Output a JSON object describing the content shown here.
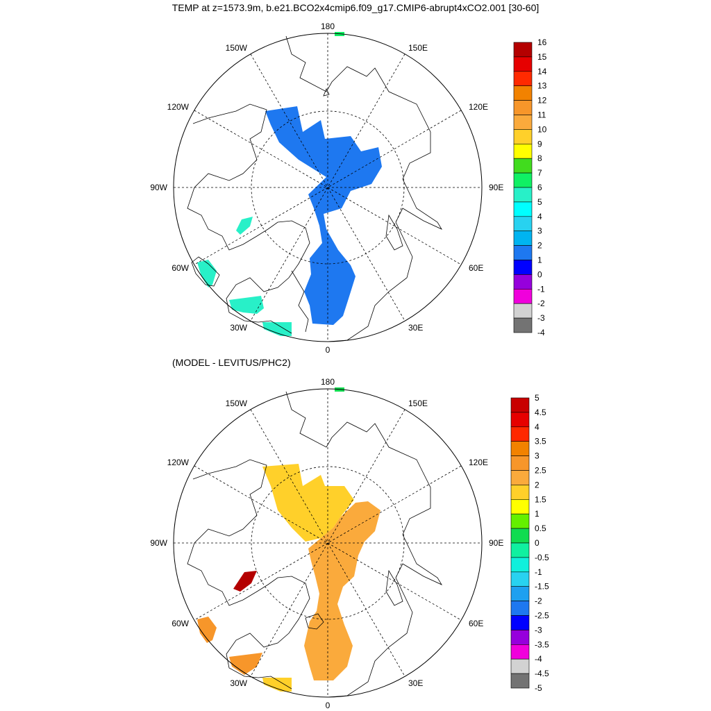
{
  "title": "TEMP at z=1573.9m, b.e21.BCO2x4cmip6.f09_g17.CMIP6-abrupt4xCO2.001 [30-60]",
  "subtitle": "(MODEL - LEVITUS/PHC2)",
  "longitude_labels": {
    "top": "180",
    "bottom": "0",
    "left": "90W",
    "right": "90E",
    "upper_left_1": "150W",
    "upper_left_2": "120W",
    "upper_right_1": "150E",
    "upper_right_2": "120E",
    "lower_left_1": "60W",
    "lower_left_2": "30W",
    "lower_right_1": "60E",
    "lower_right_2": "30E"
  },
  "colorbar_top": {
    "labels": [
      "16",
      "15",
      "14",
      "13",
      "12",
      "11",
      "10",
      "9",
      "8",
      "7",
      "6",
      "5",
      "4",
      "3",
      "2",
      "1",
      "0",
      "-1",
      "-2",
      "-3",
      "-4"
    ],
    "colors": [
      "#b40000",
      "#e60000",
      "#ff2a00",
      "#f28200",
      "#f7962a",
      "#faaa3c",
      "#ffd02a",
      "#ffff00",
      "#41dc1e",
      "#10f064",
      "#28f0c8",
      "#00ffff",
      "#28d2f0",
      "#00b4f0",
      "#1e78f0",
      "#0000ff",
      "#9600dc",
      "#f000dc",
      "#d2d2d2",
      "#737373"
    ]
  },
  "colorbar_bottom": {
    "labels": [
      "5",
      "4.5",
      "4",
      "3.5",
      "3",
      "2.5",
      "2",
      "1.5",
      "1",
      "0.5",
      "0",
      "-0.5",
      "-1",
      "-1.5",
      "-2",
      "-2.5",
      "-3",
      "-3.5",
      "-4",
      "-4.5",
      "-5"
    ],
    "colors": [
      "#c80000",
      "#e60000",
      "#ff2800",
      "#f28200",
      "#f7962a",
      "#faaa3c",
      "#ffd02a",
      "#ffff00",
      "#64f000",
      "#10dc50",
      "#10f0a0",
      "#10f0dc",
      "#28d2f0",
      "#1ea0f0",
      "#1e78f0",
      "#0000ff",
      "#9600dc",
      "#f000dc",
      "#d2d2d2",
      "#737373"
    ]
  },
  "fields": {
    "top_main_color": "#1e78f0",
    "top_aqua_color": "#28f0c8",
    "top_green_color": "#10f064",
    "bottom_yellow_color": "#ffd02a",
    "bottom_orange_color": "#faaa3c",
    "bottom_orange2_color": "#f7962a",
    "bottom_red_color": "#b40000",
    "bottom_green_color": "#10dc50"
  }
}
